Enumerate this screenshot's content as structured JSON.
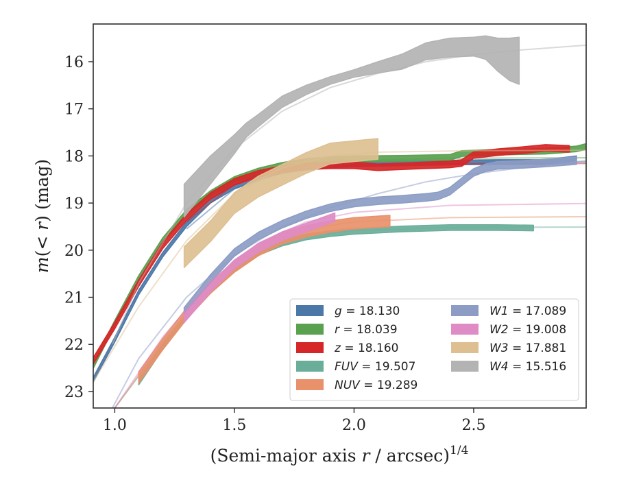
{
  "chart_data": {
    "type": "line",
    "title": "",
    "xlabel": "(Semi-major axis r / arcsec)^1/4",
    "xlabel_parts": {
      "main": "(Semi-major axis ",
      "var": "r",
      "rest": " / arcsec)",
      "sup": "1/4"
    },
    "ylabel": "m(< r) (mag)",
    "ylabel_parts": {
      "main": "m",
      "open": "(",
      "var": "< r",
      "close": ")",
      "unit": " (mag)"
    },
    "xlim": [
      0.91,
      2.97
    ],
    "ylim": [
      23.35,
      15.2
    ],
    "y_inverted": true,
    "x_ticks": [
      1.0,
      1.5,
      2.0,
      2.5
    ],
    "x_tick_labels": [
      "1.0",
      "1.5",
      "2.0",
      "2.5"
    ],
    "y_ticks": [
      16,
      17,
      18,
      19,
      20,
      21,
      22,
      23
    ],
    "y_tick_labels": [
      "16",
      "17",
      "18",
      "19",
      "20",
      "21",
      "22",
      "23"
    ],
    "grid": false,
    "legend_position": "lower-right",
    "series": [
      {
        "name": "g = 18.130",
        "band": "g",
        "mag": "18.130",
        "color": "#4c78a8",
        "data_band": {
          "x": [
            0.91,
            1.0,
            1.1,
            1.2,
            1.3,
            1.4,
            1.5,
            1.6,
            1.7,
            1.8,
            1.9,
            2.0,
            2.2,
            2.4,
            2.6,
            2.8,
            2.93
          ],
          "y": [
            22.75,
            21.9,
            20.9,
            20.1,
            19.45,
            18.95,
            18.65,
            18.45,
            18.32,
            18.24,
            18.2,
            18.18,
            18.16,
            18.14,
            18.13,
            18.13,
            18.05
          ],
          "half_width": 0.05
        },
        "model": {
          "x": [
            1.3,
            1.5,
            1.7,
            2.0,
            2.4,
            2.97
          ],
          "y": [
            19.55,
            18.7,
            18.35,
            18.2,
            18.15,
            18.13
          ]
        }
      },
      {
        "name": "r = 18.039",
        "band": "r",
        "mag": "18.039",
        "color": "#59a14f",
        "data_band": {
          "x": [
            0.91,
            1.0,
            1.1,
            1.2,
            1.3,
            1.4,
            1.5,
            1.6,
            1.7,
            1.8,
            1.9,
            2.0,
            2.2,
            2.4,
            2.45,
            2.6,
            2.8,
            2.93,
            2.97
          ],
          "y": [
            22.45,
            21.55,
            20.6,
            19.8,
            19.2,
            18.8,
            18.5,
            18.32,
            18.2,
            18.12,
            18.08,
            18.06,
            18.05,
            18.03,
            17.95,
            17.92,
            17.9,
            17.85,
            17.8
          ],
          "half_width": 0.06
        },
        "model": {
          "x": [
            1.3,
            1.5,
            1.7,
            2.0,
            2.4,
            2.97
          ],
          "y": [
            19.3,
            18.55,
            18.25,
            18.1,
            18.05,
            18.04
          ]
        }
      },
      {
        "name": "z = 18.160",
        "band": "z",
        "mag": "18.160",
        "color": "#d62728",
        "data_band": {
          "x": [
            0.91,
            1.0,
            1.1,
            1.2,
            1.3,
            1.4,
            1.5,
            1.6,
            1.7,
            1.8,
            1.9,
            2.0,
            2.1,
            2.2,
            2.3,
            2.4,
            2.45,
            2.5,
            2.6,
            2.7,
            2.8,
            2.9
          ],
          "y": [
            22.35,
            21.6,
            20.7,
            19.9,
            19.3,
            18.85,
            18.55,
            18.38,
            18.28,
            18.22,
            18.2,
            18.2,
            18.24,
            18.22,
            18.2,
            18.18,
            18.15,
            17.98,
            17.92,
            17.88,
            17.83,
            17.85
          ],
          "half_width": 0.07
        },
        "model": {
          "x": [
            1.3,
            1.5,
            1.7,
            2.0,
            2.4,
            2.97
          ],
          "y": [
            19.4,
            18.6,
            18.3,
            18.2,
            18.17,
            18.16
          ]
        }
      },
      {
        "name": "FUV = 19.507",
        "band": "FUV",
        "mag": "19.507",
        "color": "#6aae9a",
        "data_band": {
          "x": [
            1.1,
            1.2,
            1.3,
            1.4,
            1.5,
            1.6,
            1.7,
            1.8,
            1.9,
            2.0,
            2.2,
            2.4,
            2.6,
            2.75
          ],
          "y": [
            22.8,
            22.05,
            21.4,
            20.85,
            20.4,
            20.05,
            19.85,
            19.72,
            19.65,
            19.6,
            19.55,
            19.52,
            19.52,
            19.53
          ],
          "half_width": 0.06
        },
        "model": {
          "x": [
            1.0,
            1.2,
            1.4,
            1.6,
            1.8,
            2.0,
            2.4,
            2.97
          ],
          "y": [
            23.35,
            22.0,
            20.8,
            20.05,
            19.7,
            19.58,
            19.52,
            19.51
          ]
        }
      },
      {
        "name": "NUV = 19.289",
        "band": "NUV",
        "mag": "19.289",
        "color": "#e8916a",
        "data_band": {
          "x": [
            1.1,
            1.2,
            1.3,
            1.4,
            1.5,
            1.6,
            1.7,
            1.8,
            1.9,
            2.0,
            2.15
          ],
          "y": [
            22.7,
            22.0,
            21.35,
            20.8,
            20.35,
            20.0,
            19.75,
            19.6,
            19.5,
            19.43,
            19.38
          ],
          "half_width": 0.12
        },
        "model": {
          "x": [
            1.0,
            1.2,
            1.4,
            1.6,
            1.8,
            2.0,
            2.4,
            2.97
          ],
          "y": [
            23.35,
            21.95,
            20.75,
            19.95,
            19.55,
            19.4,
            19.31,
            19.29
          ]
        }
      },
      {
        "name": "W1 = 17.089",
        "band": "W1",
        "mag": "17.089",
        "color": "#8c9cc4",
        "data_band": {
          "x": [
            1.29,
            1.4,
            1.5,
            1.6,
            1.7,
            1.8,
            1.9,
            2.0,
            2.1,
            2.2,
            2.3,
            2.35,
            2.4,
            2.45,
            2.5,
            2.55,
            2.6,
            2.7,
            2.8,
            2.93
          ],
          "y": [
            21.3,
            20.6,
            20.05,
            19.7,
            19.45,
            19.25,
            19.1,
            19.0,
            18.95,
            18.92,
            18.88,
            18.85,
            18.75,
            18.55,
            18.35,
            18.25,
            18.2,
            18.18,
            18.15,
            18.1
          ],
          "half_width": 0.08
        },
        "model": {
          "x": [
            0.99,
            1.1,
            1.3,
            1.5,
            1.7,
            1.9,
            2.1,
            2.3,
            2.5,
            2.7,
            2.97
          ],
          "y": [
            23.35,
            22.3,
            21.0,
            20.1,
            19.5,
            19.1,
            18.8,
            18.55,
            18.38,
            18.25,
            18.1
          ]
        }
      },
      {
        "name": "W2 = 19.008",
        "band": "W2",
        "mag": "19.008",
        "color": "#de8bc6",
        "data_band": {
          "x": [
            1.29,
            1.4,
            1.5,
            1.6,
            1.7,
            1.8,
            1.92
          ],
          "y": [
            21.45,
            20.8,
            20.3,
            19.95,
            19.7,
            19.52,
            19.3
          ],
          "half_width": 0.09
        },
        "model": {
          "x": [
            1.0,
            1.2,
            1.4,
            1.6,
            1.8,
            2.0,
            2.4,
            2.97
          ],
          "y": [
            23.35,
            21.85,
            20.65,
            19.85,
            19.4,
            19.2,
            19.05,
            19.01
          ]
        }
      },
      {
        "name": "W3 = 17.881",
        "band": "W3",
        "mag": "17.881",
        "color": "#ddbf91",
        "data_band": {
          "x": [
            1.29,
            1.4,
            1.5,
            1.6,
            1.7,
            1.8,
            1.9,
            2.0,
            2.1
          ],
          "y": [
            20.15,
            19.6,
            19.0,
            18.65,
            18.4,
            18.15,
            17.95,
            17.9,
            17.85
          ],
          "half_width": 0.22
        },
        "model": {
          "x": [
            0.91,
            1.1,
            1.3,
            1.5,
            1.7,
            1.9,
            2.1,
            2.5,
            2.97
          ],
          "y": [
            22.8,
            21.2,
            19.8,
            18.8,
            18.25,
            18.0,
            17.92,
            17.89,
            17.88
          ]
        }
      },
      {
        "name": "W4 = 15.516",
        "band": "W4",
        "mag": "15.516",
        "color": "#b3b3b3",
        "data_band": {
          "x": [
            1.29,
            1.4,
            1.5,
            1.55,
            1.6,
            1.7,
            1.8,
            1.9,
            2.0,
            2.1,
            2.2,
            2.3,
            2.4,
            2.5,
            2.55,
            2.6,
            2.65,
            2.69
          ],
          "y": [
            18.95,
            18.3,
            17.75,
            17.45,
            17.25,
            16.85,
            16.6,
            16.4,
            16.25,
            16.12,
            16.0,
            15.78,
            15.7,
            15.68,
            15.7,
            15.85,
            15.95,
            15.98
          ],
          "half_width_list": [
            0.35,
            0.3,
            0.2,
            0.15,
            0.13,
            0.12,
            0.1,
            0.08,
            0.08,
            0.12,
            0.16,
            0.18,
            0.2,
            0.2,
            0.25,
            0.35,
            0.45,
            0.5
          ]
        },
        "model": {
          "x": [
            0.99,
            1.1,
            1.3,
            1.5,
            1.7,
            1.9,
            2.1,
            2.3,
            2.5,
            2.7,
            2.97
          ],
          "y": [
            22.0,
            20.7,
            19.0,
            17.85,
            17.05,
            16.55,
            16.25,
            16.0,
            15.85,
            15.75,
            15.65
          ]
        }
      }
    ]
  }
}
